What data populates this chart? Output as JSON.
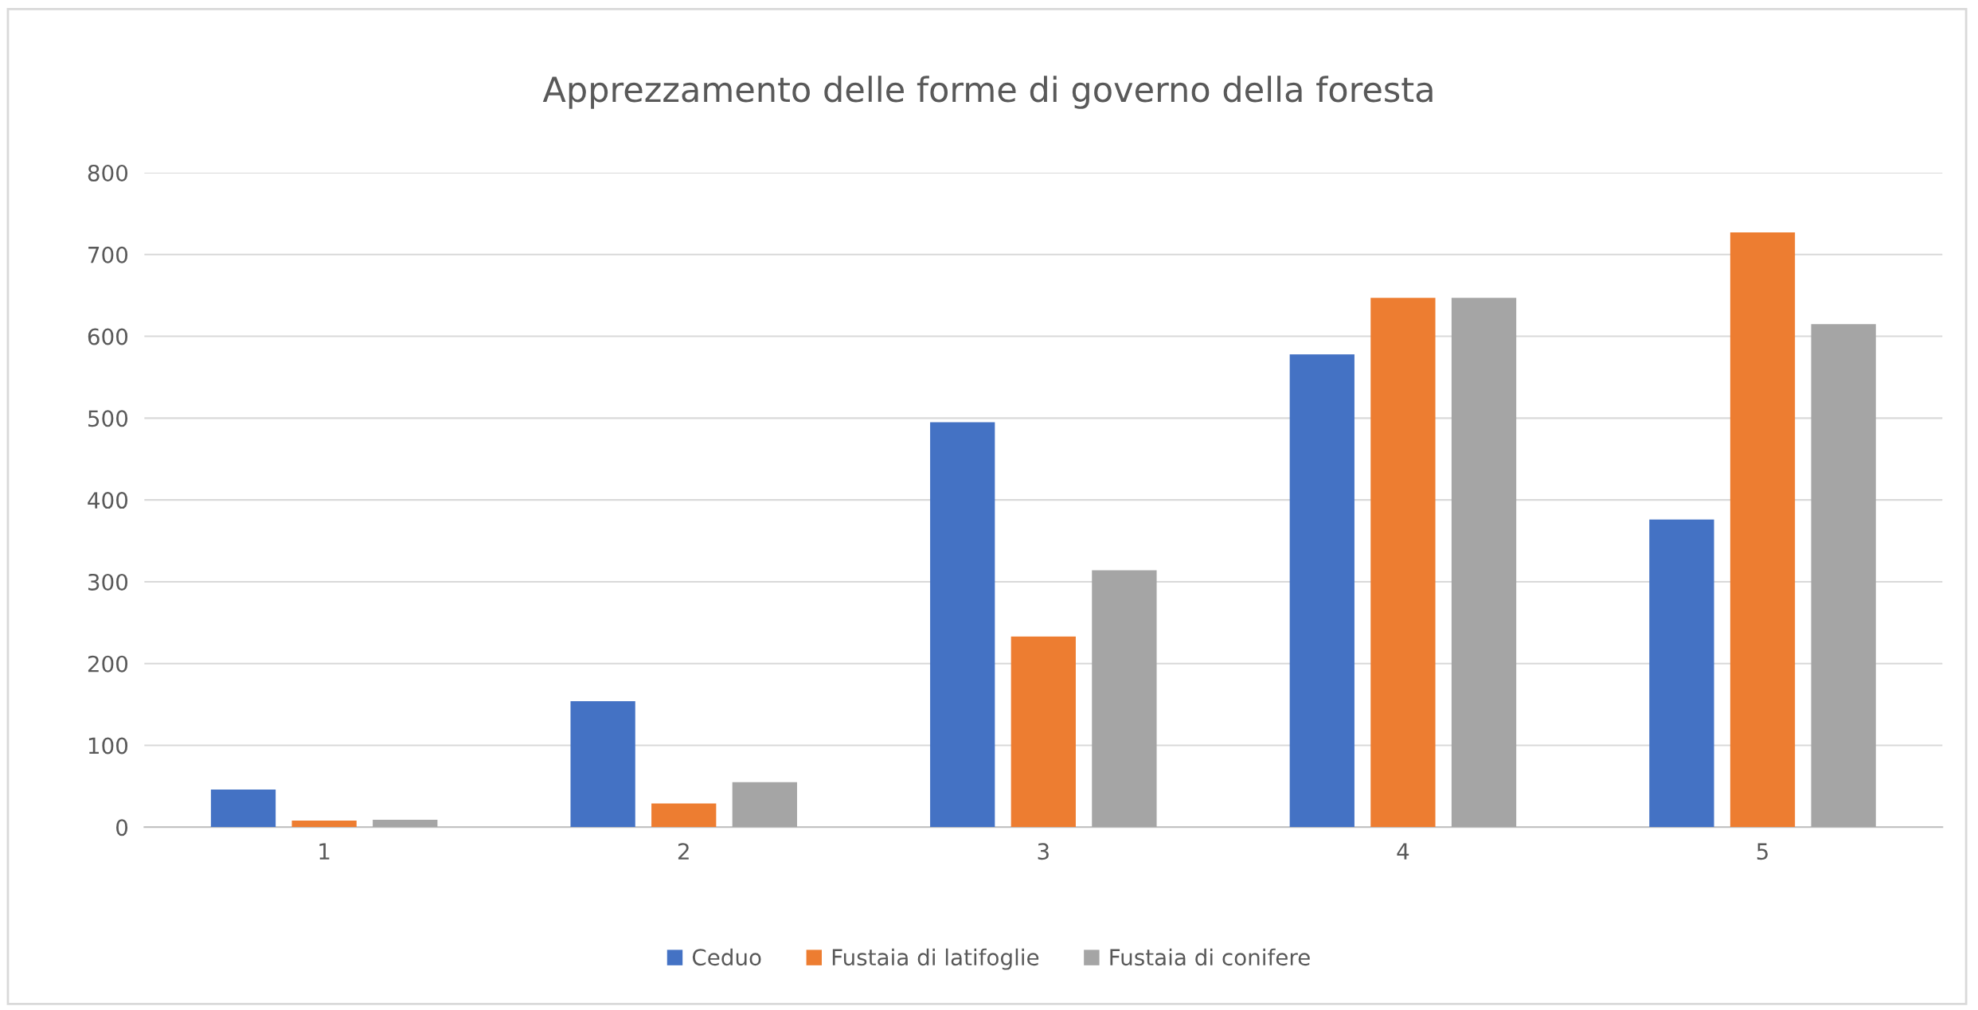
{
  "chart_data": {
    "type": "bar",
    "title": "Apprezzamento delle forme di governo della foresta",
    "categories": [
      "1",
      "2",
      "3",
      "4",
      "5"
    ],
    "series": [
      {
        "name": "Ceduo",
        "color": "#4472c4",
        "values": [
          46,
          154,
          495,
          578,
          376
        ]
      },
      {
        "name": "Fustaia di latifoglie",
        "color": "#ed7d31",
        "values": [
          8,
          29,
          233,
          647,
          727
        ]
      },
      {
        "name": "Fustaia di conifere",
        "color": "#a5a5a5",
        "values": [
          9,
          55,
          314,
          647,
          615
        ]
      }
    ],
    "ylim": [
      0,
      800
    ],
    "yticks": [
      0,
      100,
      200,
      300,
      400,
      500,
      600,
      700,
      800
    ],
    "grid": "y",
    "legend": "bottom"
  }
}
